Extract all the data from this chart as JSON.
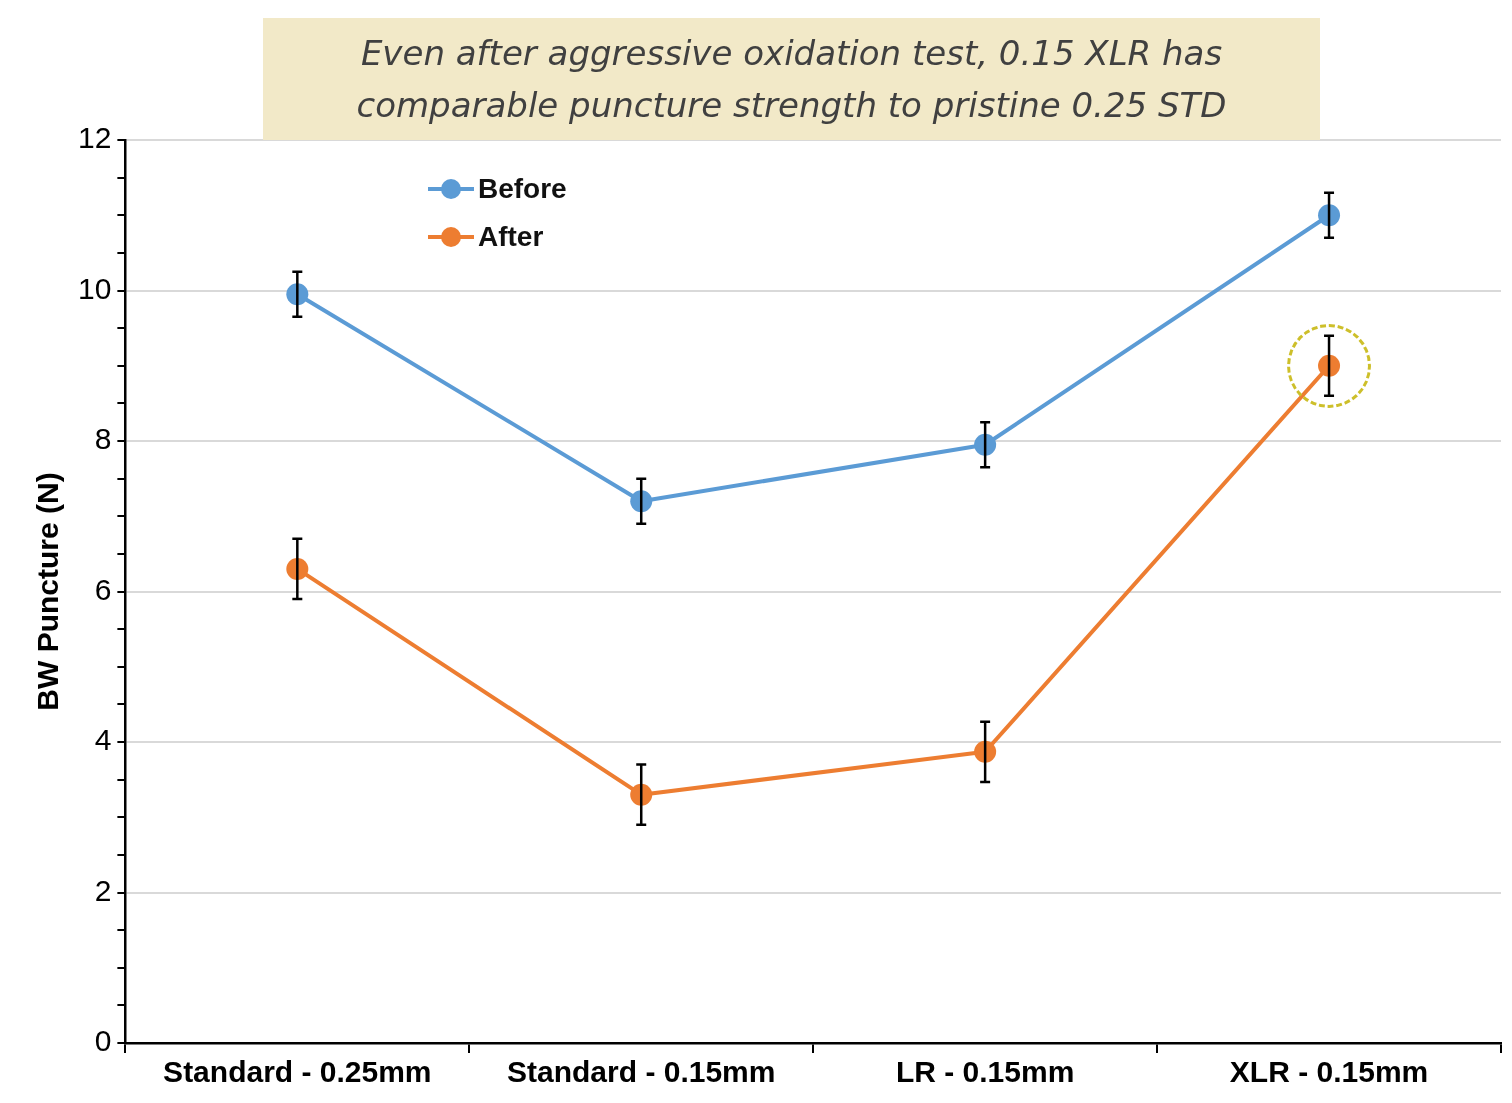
{
  "chart_data": {
    "type": "line",
    "title": "Even after aggressive oxidation test, 0.15 XLR has comparable puncture strength to pristine 0.25 STD",
    "ylabel": "BW Puncture (N)",
    "categories": [
      "Standard - 0.25mm",
      "Standard - 0.15mm",
      "LR - 0.15mm",
      "XLR - 0.15mm"
    ],
    "series": [
      {
        "name": "Before",
        "color": "#5b9bd5",
        "values": [
          9.95,
          7.2,
          7.95,
          11.0
        ],
        "errors": [
          0.3,
          0.3,
          0.3,
          0.3
        ]
      },
      {
        "name": "After",
        "color": "#ed7d31",
        "values": [
          6.3,
          3.3,
          3.87,
          9.0
        ],
        "errors": [
          0.4,
          0.4,
          0.4,
          0.4
        ]
      }
    ],
    "ylim": [
      0,
      12
    ],
    "yticks": [
      0,
      {
        "value": 0.5,
        "label": null
      },
      {
        "value": 1,
        "label": null
      },
      {
        "value": 1.5,
        "label": null
      },
      2,
      {
        "value": 2.5,
        "label": null
      },
      {
        "value": 3,
        "label": null
      },
      {
        "value": 3.5,
        "label": null
      },
      4,
      {
        "value": 4.5,
        "label": null
      },
      {
        "value": 5,
        "label": null
      },
      {
        "value": 5.5,
        "label": null
      },
      6,
      {
        "value": 6.5,
        "label": null
      },
      {
        "value": 7,
        "label": null
      },
      {
        "value": 7.5,
        "label": null
      },
      8,
      {
        "value": 8.5,
        "label": null
      },
      {
        "value": 9,
        "label": null
      },
      {
        "value": 9.5,
        "label": null
      },
      10,
      {
        "value": 10.5,
        "label": null
      },
      {
        "value": 11,
        "label": null
      },
      {
        "value": 11.5,
        "label": null
      },
      12
    ],
    "grid": "y",
    "legend": "top left",
    "marker": "circle",
    "line_style": "solid"
  }
}
